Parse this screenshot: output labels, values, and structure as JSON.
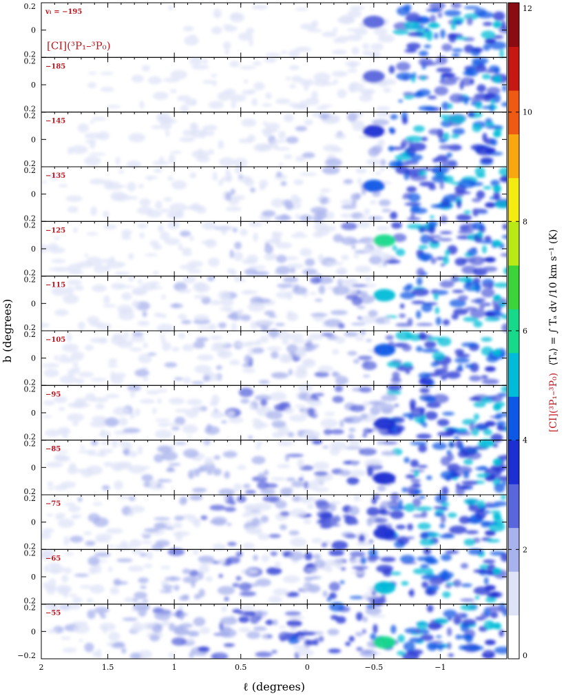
{
  "chart_data": {
    "type": "heatmap",
    "description_free": true,
    "xlabel": "ℓ (degrees)",
    "ylabel": "b (degrees)",
    "xlim": [
      2,
      -1.5
    ],
    "ylim": [
      -0.2,
      0.2
    ],
    "x_ticks": [
      {
        "value": 2,
        "label": "2"
      },
      {
        "value": 1.5,
        "label": "1.5"
      },
      {
        "value": 1,
        "label": "1"
      },
      {
        "value": 0.5,
        "label": "0.5"
      },
      {
        "value": 0,
        "label": "0"
      },
      {
        "value": -0.5,
        "label": "−0.5"
      },
      {
        "value": -1,
        "label": "−1"
      }
    ],
    "y_ticks": [
      {
        "value": 0.2,
        "label": "0.2"
      },
      {
        "value": 0,
        "label": "0"
      },
      {
        "value": -0.2,
        "label": "−0.2"
      }
    ],
    "panel_tracer_label": "[CI](³P₁–³P₀)",
    "panels": [
      {
        "label": "vₗ = −195"
      },
      {
        "label": "−185"
      },
      {
        "label": "−145"
      },
      {
        "label": "−135"
      },
      {
        "label": "−125"
      },
      {
        "label": "−115"
      },
      {
        "label": "−105"
      },
      {
        "label": "−95"
      },
      {
        "label": "−85"
      },
      {
        "label": "−75"
      },
      {
        "label": "−65"
      },
      {
        "label": "−55"
      }
    ],
    "colorbar": {
      "range": [
        0,
        12
      ],
      "ticks": [
        {
          "value": 0,
          "label": "0"
        },
        {
          "value": 2,
          "label": "2"
        },
        {
          "value": 4,
          "label": "4"
        },
        {
          "value": 6,
          "label": "6"
        },
        {
          "value": 8,
          "label": "8"
        },
        {
          "value": 10,
          "label": "10"
        },
        {
          "value": 12,
          "label": "12"
        }
      ],
      "label_red": "[CI](³P₁–³P₀)",
      "label_black": "⟨Tₐ⟩ = ∫ Tₐ dv /10 km s⁻¹ (K)",
      "colors": [
        "#ffffff",
        "#dfe3f7",
        "#a8b2ec",
        "#5a66dc",
        "#1d2fd2",
        "#0e58e6",
        "#00bcd8",
        "#17d98a",
        "#3dd33a",
        "#b9ea16",
        "#f4ec10",
        "#f9a70e",
        "#ef5a12",
        "#c61812",
        "#8a0c12"
      ]
    }
  }
}
